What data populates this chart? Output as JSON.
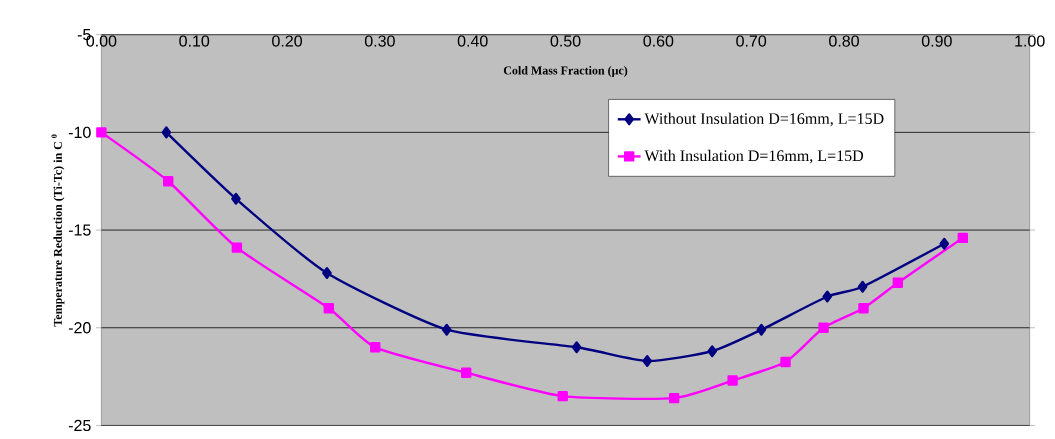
{
  "chart_data": {
    "type": "line",
    "xlabel": "Cold Mass Fraction (μc)",
    "ylabel": "Temperature Reduction (Ti-Tc) in C $^{0}$",
    "xlim": [
      0,
      1
    ],
    "ylim": [
      -25,
      -5
    ],
    "xticks": [
      {
        "value": 0,
        "label": "0.00"
      },
      {
        "value": 0.1,
        "label": "0.10"
      },
      {
        "value": 0.2,
        "label": "0.20"
      },
      {
        "value": 0.3,
        "label": "0.30"
      },
      {
        "value": 0.4,
        "label": "0.40"
      },
      {
        "value": 0.5,
        "label": "0.50"
      },
      {
        "value": 0.6,
        "label": "0.60"
      },
      {
        "value": 0.7,
        "label": "0.70"
      },
      {
        "value": 0.8,
        "label": "0.80"
      },
      {
        "value": 0.9,
        "label": "0.90"
      },
      {
        "value": 1,
        "label": "1.00"
      }
    ],
    "yticks": [
      -25,
      -20,
      -15,
      -10,
      -5
    ],
    "grid": "y",
    "legend": "top right",
    "line_style": "solid",
    "series": [
      {
        "name": "Without Insulation D=16mm, L=15D",
        "color": "#000080",
        "marker": "diamond",
        "x": [
          0.07,
          0.145,
          0.243,
          0.372,
          0.512,
          0.588,
          0.658,
          0.711,
          0.782,
          0.82,
          0.908
        ],
        "values": [
          -10.0,
          -13.4,
          -17.2,
          -20.1,
          -21.0,
          -21.7,
          -21.2,
          -20.1,
          -18.4,
          -17.9,
          -15.7
        ]
      },
      {
        "name": "With Insulation D=16mm, L=15D",
        "color": "#ff00ff",
        "marker": "square",
        "x": [
          0.0,
          0.072,
          0.146,
          0.245,
          0.295,
          0.393,
          0.497,
          0.617,
          0.68,
          0.737,
          0.778,
          0.821,
          0.858,
          0.928
        ],
        "values": [
          -10.0,
          -12.5,
          -15.9,
          -19.0,
          -21.0,
          -22.3,
          -23.5,
          -23.6,
          -22.7,
          -21.75,
          -20.0,
          -19.0,
          -17.7,
          -15.4
        ]
      }
    ]
  }
}
